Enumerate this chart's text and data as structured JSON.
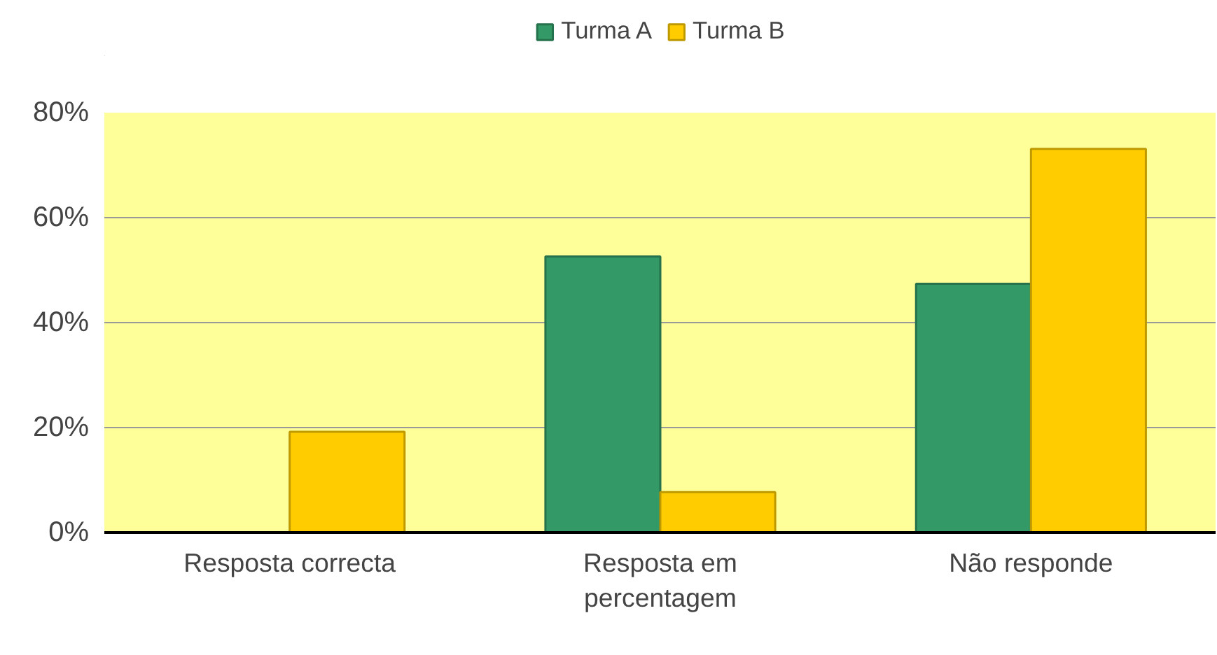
{
  "chart_data": {
    "type": "bar",
    "categories": [
      "Resposta correcta",
      "Resposta em percentagem",
      "Não responde"
    ],
    "series": [
      {
        "name": "Turma A",
        "color": "#339966",
        "values": [
          0,
          52.6,
          47.4
        ]
      },
      {
        "name": "Turma B",
        "color": "#ffcc00",
        "values": [
          19.2,
          7.7,
          73.1
        ]
      }
    ],
    "ylim": [
      0,
      80
    ],
    "yticks": [
      {
        "value": 0,
        "label": "0%"
      },
      {
        "value": 20,
        "label": "20%"
      },
      {
        "value": 40,
        "label": "40%"
      },
      {
        "value": 60,
        "label": "60%"
      },
      {
        "value": 80,
        "label": "80%"
      }
    ],
    "grid": "y",
    "legend": "top"
  }
}
